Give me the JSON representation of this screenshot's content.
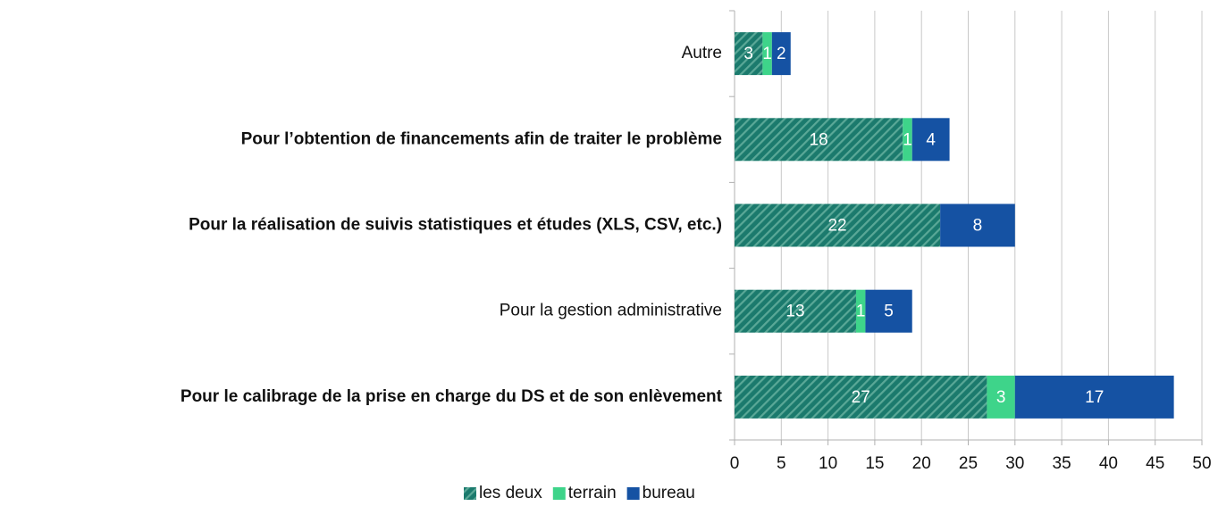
{
  "chart_data": {
    "type": "stacked-barh",
    "categories": [
      "Autre",
      "Pour l’obtention de financements afin de traiter le problème",
      "Pour la réalisation de suivis statistiques et études (XLS, CSV, etc.)",
      "Pour la gestion administrative",
      "Pour le calibrage de la prise en charge du DS et de son enlèvement"
    ],
    "label_bold": [
      false,
      true,
      true,
      false,
      true
    ],
    "series": [
      {
        "name": "les deux",
        "color": "#1b7a6d",
        "hatch": true,
        "values": [
          3,
          18,
          22,
          13,
          27
        ]
      },
      {
        "name": "terrain",
        "color": "#3ed48a",
        "values": [
          1,
          1,
          0,
          1,
          3
        ]
      },
      {
        "name": "bureau",
        "color": "#1552a3",
        "values": [
          2,
          4,
          8,
          5,
          17
        ]
      }
    ],
    "xlim": [
      0,
      50
    ],
    "xticks": [
      0,
      5,
      10,
      15,
      20,
      25,
      30,
      35,
      40,
      45,
      50
    ],
    "grid": true,
    "legend": "bottom"
  }
}
